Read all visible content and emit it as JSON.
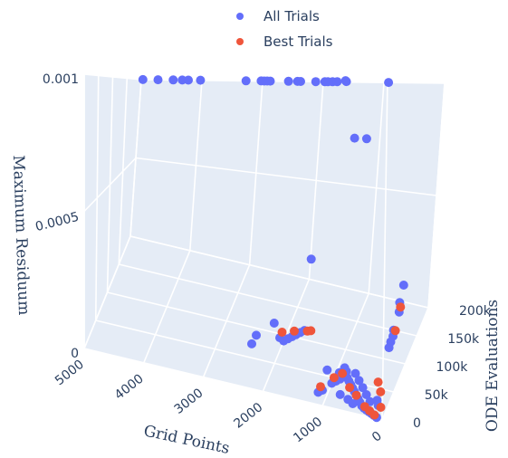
{
  "chart_data": {
    "type": "scatter",
    "projection": "3d",
    "legend": {
      "placement": "top-center",
      "entries": [
        {
          "name": "All Trials",
          "color": "#636efa"
        },
        {
          "name": "Best Trials",
          "color": "#ef553b"
        }
      ]
    },
    "axes": {
      "x": {
        "title": "Grid Points",
        "range": [
          0,
          5000
        ],
        "ticks": [
          0,
          1000,
          2000,
          3000,
          4000,
          5000
        ],
        "tick_labels": [
          "0",
          "1000",
          "2000",
          "3000",
          "4000",
          "5000"
        ]
      },
      "y": {
        "title": "ODE Evaluations",
        "range": [
          0,
          200000
        ],
        "ticks": [
          0,
          50000,
          100000,
          150000,
          200000
        ],
        "tick_labels": [
          "0",
          "50k",
          "100k",
          "150k",
          "200k"
        ]
      },
      "z": {
        "title": "Maximum Residuum",
        "range": [
          0,
          0.001
        ],
        "ticks": [
          0,
          0.0005,
          0.001
        ],
        "tick_labels": [
          "0",
          "0.0005",
          "0.001"
        ]
      }
    },
    "grid": true,
    "series": [
      {
        "name": "All Trials",
        "color": "#636efa",
        "points": [
          [
            4950,
            195000,
            0.001
          ],
          [
            4700,
            195000,
            0.001
          ],
          [
            4450,
            195000,
            0.001
          ],
          [
            4300,
            195000,
            0.001
          ],
          [
            4200,
            195000,
            0.001
          ],
          [
            4000,
            195000,
            0.001
          ],
          [
            3250,
            195000,
            0.001
          ],
          [
            3000,
            195000,
            0.001
          ],
          [
            2950,
            195000,
            0.001
          ],
          [
            2900,
            195000,
            0.001
          ],
          [
            2850,
            195000,
            0.001
          ],
          [
            2550,
            195000,
            0.001
          ],
          [
            2400,
            195000,
            0.001
          ],
          [
            2350,
            195000,
            0.001
          ],
          [
            2100,
            195000,
            0.001
          ],
          [
            1950,
            195000,
            0.001
          ],
          [
            1900,
            195000,
            0.001
          ],
          [
            1800,
            190000,
            0.001
          ],
          [
            1700,
            185000,
            0.001
          ],
          [
            1500,
            175000,
            0.001
          ],
          [
            1350,
            140000,
            0.001
          ],
          [
            900,
            195000,
            0.001
          ],
          [
            800,
            60000,
            0.0008
          ],
          [
            600,
            60000,
            0.0008
          ],
          [
            2200,
            20000,
            0.00014
          ],
          [
            1850,
            160000,
            0.0002
          ],
          [
            2350,
            40000,
            7e-05
          ],
          [
            2150,
            85000,
            7e-05
          ],
          [
            2050,
            85000,
            2e-05
          ],
          [
            2000,
            90000,
            0.0
          ],
          [
            1950,
            95000,
            0.0
          ],
          [
            1900,
            100000,
            0.0
          ],
          [
            1850,
            105000,
            0.0
          ],
          [
            1800,
            110000,
            0.0
          ],
          [
            1750,
            115000,
            0.0
          ],
          [
            400,
            190000,
            0.0001
          ],
          [
            380,
            170000,
            3e-05
          ],
          [
            380,
            170000,
            7e-05
          ],
          [
            390,
            150000,
            0.0
          ],
          [
            360,
            140000,
            0.0
          ],
          [
            360,
            130000,
            0.0
          ],
          [
            350,
            120000,
            0.0
          ],
          [
            1150,
            20000,
            0.0
          ],
          [
            1100,
            25000,
            0.0
          ],
          [
            1000,
            40000,
            0.0
          ],
          [
            950,
            45000,
            0.0
          ],
          [
            900,
            50000,
            0.0
          ],
          [
            850,
            55000,
            0.0
          ],
          [
            800,
            55000,
            0.0
          ],
          [
            750,
            50000,
            0.0
          ],
          [
            700,
            45000,
            0.0
          ],
          [
            650,
            40000,
            0.0
          ],
          [
            600,
            35000,
            0.0
          ],
          [
            550,
            30000,
            0.0
          ],
          [
            500,
            25000,
            0.0
          ],
          [
            450,
            20000,
            0.0
          ],
          [
            400,
            15000,
            0.0
          ],
          [
            350,
            12000,
            0.0
          ],
          [
            300,
            10000,
            0.0
          ],
          [
            250,
            8000,
            0.0
          ],
          [
            200,
            6000,
            0.0
          ],
          [
            150,
            4000,
            0.0
          ],
          [
            100,
            2000,
            0.0
          ],
          [
            950,
            60000,
            0.0
          ],
          [
            850,
            65000,
            0.0
          ],
          [
            700,
            65000,
            0.0
          ],
          [
            600,
            55000,
            0.0
          ],
          [
            500,
            45000,
            0.0
          ],
          [
            400,
            35000,
            0.0
          ],
          [
            300,
            25000,
            0.0
          ],
          [
            1100,
            45000,
            3e-05
          ],
          [
            900,
            70000,
            0.0
          ],
          [
            800,
            25000,
            0.0
          ],
          [
            650,
            20000,
            0.0
          ],
          [
            550,
            15000,
            0.0
          ],
          [
            200,
            30000,
            0.0
          ],
          [
            150,
            22000,
            0.0
          ]
        ]
      },
      {
        "name": "Best Trials",
        "color": "#ef553b",
        "points": [
          [
            1900,
            110000,
            0.0
          ],
          [
            1700,
            115000,
            0.0
          ],
          [
            1650,
            117000,
            0.0
          ],
          [
            2050,
            95000,
            2e-05
          ],
          [
            380,
            175000,
            4e-05
          ],
          [
            360,
            150000,
            0.0
          ],
          [
            1150,
            30000,
            0.0
          ],
          [
            1000,
            50000,
            0.0
          ],
          [
            900,
            60000,
            0.0
          ],
          [
            700,
            40000,
            0.0
          ],
          [
            550,
            30000,
            0.0
          ],
          [
            350,
            15000,
            0.0
          ],
          [
            250,
            10000,
            0.0
          ],
          [
            150,
            5000,
            0.0
          ],
          [
            300,
            60000,
            0.0
          ],
          [
            200,
            45000,
            0.0
          ],
          [
            100,
            20000,
            0.0
          ]
        ]
      }
    ]
  }
}
